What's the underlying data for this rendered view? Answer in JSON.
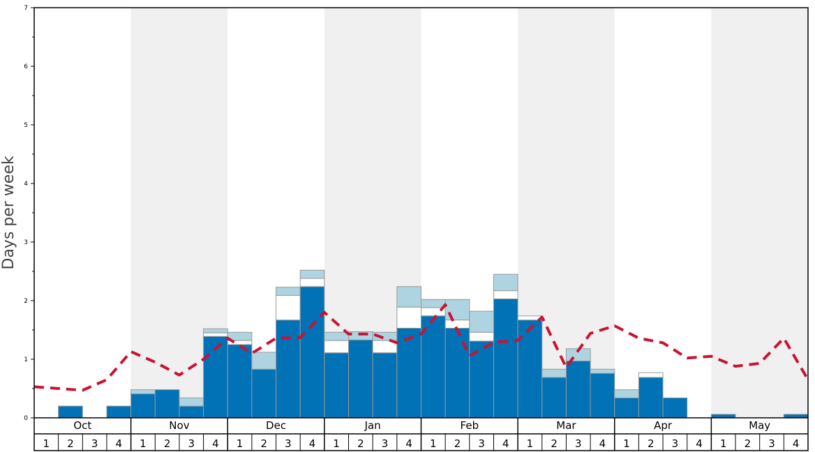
{
  "chart_data": {
    "type": "bar",
    "ylabel": "Days per week",
    "ylim": [
      0,
      7
    ],
    "y_ticks": [
      0,
      1,
      2,
      3,
      4,
      5,
      6,
      7
    ],
    "months": [
      "Oct",
      "Nov",
      "Dec",
      "Jan",
      "Feb",
      "Mar",
      "Apr",
      "May"
    ],
    "weeks_per_month": [
      "1",
      "2",
      "3",
      "4"
    ],
    "colors": {
      "primary_bar": "#0072b5",
      "middle_bar": "#ffffff",
      "top_bar": "#add4e0",
      "avg_line": "#cc1133",
      "shade": "#f0f0f0",
      "bar_stroke": "#999999"
    },
    "series": [
      {
        "values": [
          0,
          0.2,
          0,
          0.2,
          0.41,
          0.48,
          0.2,
          1.39,
          1.25,
          0.83,
          1.67,
          2.24,
          1.11,
          1.33,
          1.11,
          1.53,
          1.74,
          1.53,
          1.31,
          2.03,
          1.67,
          0.69,
          0.97,
          0.76,
          0.34,
          0.69,
          0.34,
          0,
          0.06,
          0,
          0,
          0.06
        ]
      },
      {
        "values": [
          0,
          0,
          0,
          0,
          0,
          0,
          0,
          0.06,
          0.07,
          0,
          0.42,
          0.14,
          0.21,
          0,
          0.21,
          0.36,
          0.14,
          0.14,
          0.15,
          0.14,
          0.07,
          0,
          0,
          0,
          0,
          0.08,
          0,
          0,
          0,
          0,
          0,
          0
        ]
      },
      {
        "values": [
          0,
          0,
          0,
          0,
          0.07,
          0,
          0.14,
          0.07,
          0.14,
          0.29,
          0.14,
          0.14,
          0.14,
          0.14,
          0.14,
          0.35,
          0.14,
          0.35,
          0.36,
          0.28,
          0,
          0.14,
          0.21,
          0.07,
          0.14,
          0,
          0,
          0,
          0,
          0,
          0,
          0
        ]
      },
      {
        "values": [
          0.53,
          0.5,
          0.47,
          0.65,
          1.13,
          0.95,
          0.73,
          1.0,
          1.36,
          1.1,
          1.36,
          1.37,
          1.8,
          1.43,
          1.43,
          1.28,
          1.43,
          1.93,
          1.06,
          1.29,
          1.32,
          1.72,
          0.86,
          1.44,
          1.57,
          1.36,
          1.28,
          1.02,
          1.05,
          0.88,
          0.93,
          1.36,
          0.65
        ]
      }
    ]
  }
}
